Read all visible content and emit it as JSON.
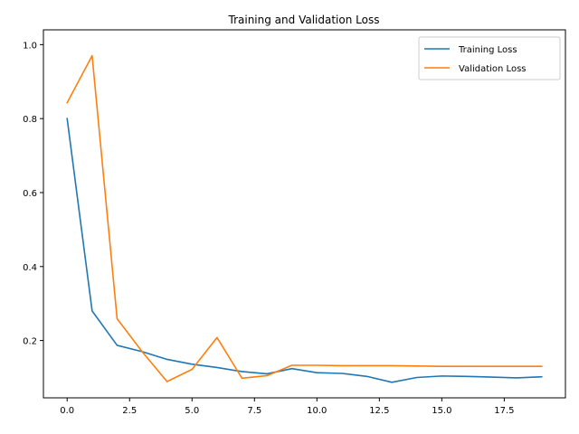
{
  "chart_data": {
    "type": "line",
    "title": "Training and Validation Loss",
    "xlabel": "",
    "ylabel": "",
    "xlim": [
      -0.95,
      19.95
    ],
    "ylim": [
      0.045,
      1.04
    ],
    "xticks": [
      0.0,
      2.5,
      5.0,
      7.5,
      10.0,
      12.5,
      15.0,
      17.5
    ],
    "xtick_labels": [
      "0.0",
      "2.5",
      "5.0",
      "7.5",
      "10.0",
      "12.5",
      "15.0",
      "17.5"
    ],
    "yticks": [
      0.2,
      0.4,
      0.6,
      0.8,
      1.0
    ],
    "ytick_labels": [
      "0.2",
      "0.4",
      "0.6",
      "0.8",
      "1.0"
    ],
    "grid": false,
    "legend_position": "top-right",
    "x": [
      0,
      1,
      2,
      3,
      4,
      5,
      6,
      7,
      8,
      9,
      10,
      11,
      12,
      13,
      14,
      15,
      16,
      17,
      18,
      19
    ],
    "series": [
      {
        "name": "Training Loss",
        "color": "#1f77b4",
        "values": [
          0.8,
          0.28,
          0.187,
          0.17,
          0.149,
          0.136,
          0.127,
          0.116,
          0.11,
          0.124,
          0.113,
          0.111,
          0.103,
          0.087,
          0.1,
          0.104,
          0.103,
          0.101,
          0.099,
          0.102
        ]
      },
      {
        "name": "Validation Loss",
        "color": "#ff7f0e",
        "values": [
          0.843,
          0.97,
          0.259,
          0.17,
          0.089,
          0.122,
          0.208,
          0.098,
          0.105,
          0.133,
          0.133,
          0.132,
          0.132,
          0.132,
          0.131,
          0.13,
          0.13,
          0.13,
          0.13,
          0.13
        ]
      }
    ]
  }
}
